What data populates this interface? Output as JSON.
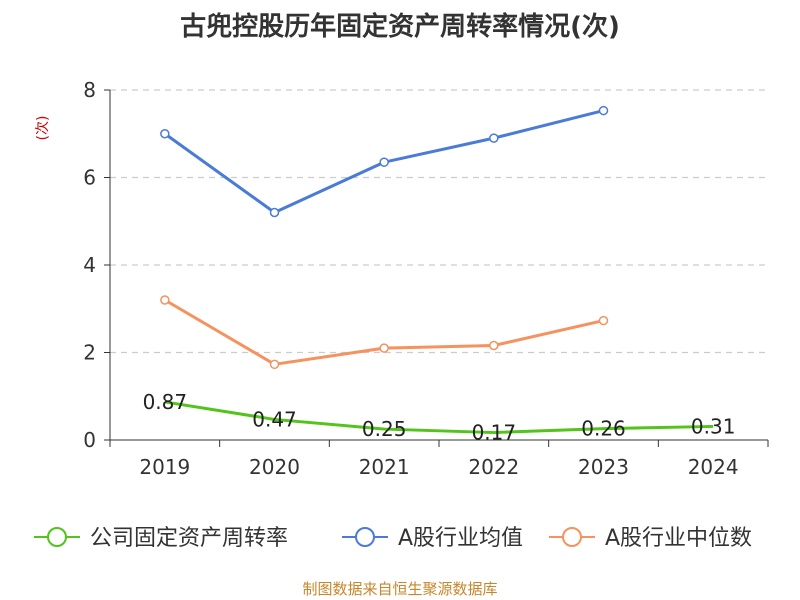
{
  "chart_data": {
    "type": "line",
    "title": "古兜控股历年固定资产周转率情况(次)",
    "ylabel": "(次)",
    "xlabel": "",
    "ylim": [
      0,
      8
    ],
    "yticks": [
      0,
      2,
      4,
      6,
      8
    ],
    "categories": [
      "2019",
      "2020",
      "2021",
      "2022",
      "2023",
      "2024"
    ],
    "grid": true,
    "legend_position": "bottom",
    "series": [
      {
        "name": "公司固定资产周转率",
        "color": "#52c41a",
        "values": [
          0.87,
          0.47,
          0.25,
          0.17,
          0.26,
          0.31
        ],
        "labels": [
          "0.87",
          "0.47",
          "0.25",
          "0.17",
          "0.26",
          "0.31"
        ]
      },
      {
        "name": "A股行业均值",
        "color": "#4a7bd6",
        "values": [
          7.0,
          5.2,
          6.35,
          6.9,
          7.53,
          null
        ]
      },
      {
        "name": "A股行业中位数",
        "color": "#f5925e",
        "values": [
          3.2,
          1.73,
          2.1,
          2.16,
          2.73,
          null
        ]
      }
    ]
  },
  "source": "制图数据来自恒生聚源数据库",
  "colors": {
    "ylabel": "#cc0000",
    "grid": "#cccccc",
    "axis": "#333333"
  }
}
